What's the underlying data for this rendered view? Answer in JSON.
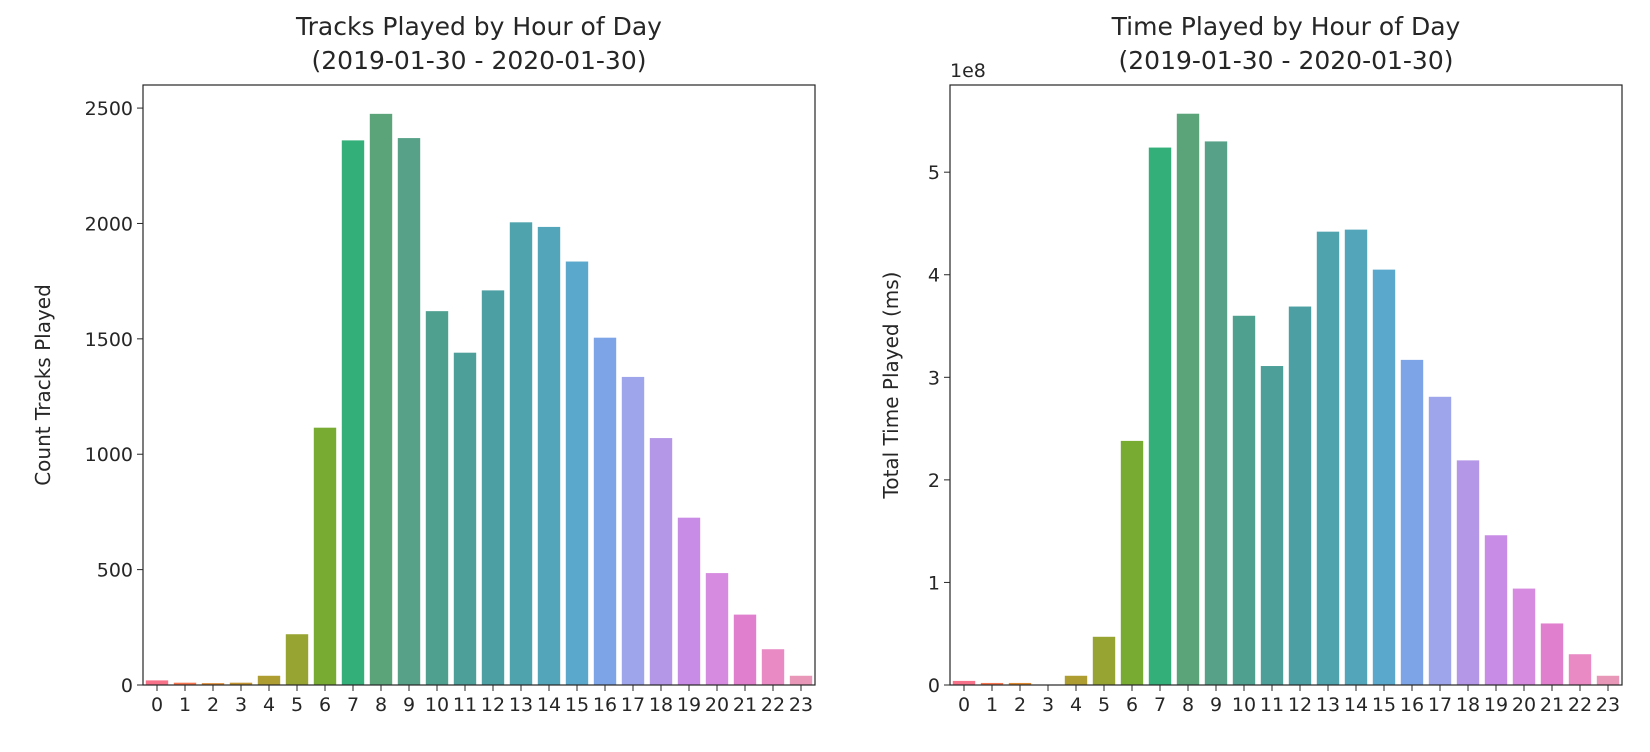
{
  "chart_data": [
    {
      "type": "bar",
      "title": "Tracks Played by Hour of Day",
      "subtitle": "(2019-01-30 - 2020-01-30)",
      "xlabel": "",
      "ylabel": "Count Tracks Played",
      "ylim": [
        0,
        2600
      ],
      "yticks": [
        0,
        500,
        1000,
        1500,
        2000,
        2500
      ],
      "ytick_labels": [
        "0",
        "500",
        "1000",
        "1500",
        "2000",
        "2500"
      ],
      "categories": [
        "0",
        "1",
        "2",
        "3",
        "4",
        "5",
        "6",
        "7",
        "8",
        "9",
        "10",
        "11",
        "12",
        "13",
        "14",
        "15",
        "16",
        "17",
        "18",
        "19",
        "20",
        "21",
        "22",
        "23"
      ],
      "values": [
        20,
        10,
        8,
        10,
        40,
        220,
        1115,
        2360,
        2475,
        2370,
        1620,
        1440,
        1710,
        2005,
        1985,
        1835,
        1505,
        1335,
        1070,
        725,
        485,
        305,
        155,
        40
      ],
      "grid": false,
      "legend": "none"
    },
    {
      "type": "bar",
      "title": "Time Played by Hour of Day",
      "subtitle": "(2019-01-30 - 2020-01-30)",
      "xlabel": "",
      "ylabel": "Total Time Played (ms)",
      "y_offset_label": "1e8",
      "ylim": [
        0,
        5.85
      ],
      "yticks": [
        0,
        1,
        2,
        3,
        4,
        5
      ],
      "ytick_labels": [
        "0",
        "1",
        "2",
        "3",
        "4",
        "5"
      ],
      "categories": [
        "0",
        "1",
        "2",
        "3",
        "4",
        "5",
        "6",
        "7",
        "8",
        "9",
        "10",
        "11",
        "12",
        "13",
        "14",
        "15",
        "16",
        "17",
        "18",
        "19",
        "20",
        "21",
        "22",
        "23"
      ],
      "values": [
        0.04,
        0.02,
        0.02,
        0.0,
        0.09,
        0.47,
        2.38,
        5.24,
        5.57,
        5.3,
        3.6,
        3.11,
        3.69,
        4.42,
        4.44,
        4.05,
        3.17,
        2.81,
        2.19,
        1.46,
        0.94,
        0.6,
        0.3,
        0.09
      ],
      "grid": false,
      "legend": "none"
    }
  ],
  "palette": [
    "#f77189",
    "#f7754f",
    "#dc8932",
    "#c39532",
    "#ae9d31",
    "#97a431",
    "#77ab31",
    "#33b07a",
    "#35ad9c",
    "#36abae",
    "#38a9c5",
    "#3ba3ec",
    "#a48cf4",
    "#cc7af4",
    "#f45cf2",
    "#f66bad"
  ]
}
